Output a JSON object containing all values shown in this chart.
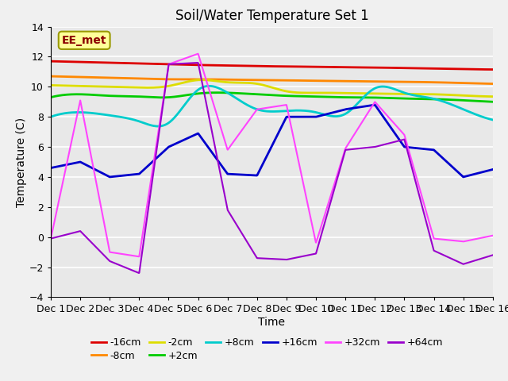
{
  "title": "Soil/Water Temperature Set 1",
  "xlabel": "Time",
  "ylabel": "Temperature (C)",
  "xlim": [
    0,
    15
  ],
  "ylim": [
    -4,
    14
  ],
  "yticks": [
    -4,
    -2,
    0,
    2,
    4,
    6,
    8,
    10,
    12,
    14
  ],
  "xtick_labels": [
    "Dec 1",
    "Dec 2",
    "Dec 3",
    "Dec 4",
    "Dec 5",
    "Dec 6",
    "Dec 7",
    "Dec 8",
    "Dec 9",
    "Dec 10",
    "Dec 11",
    "Dec 12",
    "Dec 13",
    "Dec 14",
    "Dec 15",
    "Dec 16"
  ],
  "annotation_text": "EE_met",
  "annotation_bg": "#ffff99",
  "annotation_border": "#999900",
  "series": [
    {
      "label": "-16cm",
      "color": "#dd0000",
      "lw": 2.0,
      "smooth": true,
      "values": [
        11.7,
        11.65,
        11.6,
        11.55,
        11.5,
        11.45,
        11.42,
        11.38,
        11.35,
        11.33,
        11.3,
        11.28,
        11.25,
        11.22,
        11.18,
        11.15
      ]
    },
    {
      "label": "-8cm",
      "color": "#ff8800",
      "lw": 2.0,
      "smooth": true,
      "values": [
        10.7,
        10.65,
        10.6,
        10.55,
        10.5,
        10.5,
        10.48,
        10.45,
        10.43,
        10.4,
        10.38,
        10.35,
        10.33,
        10.3,
        10.25,
        10.2
      ]
    },
    {
      "label": "-2cm",
      "color": "#dddd00",
      "lw": 2.0,
      "smooth": true,
      "values": [
        10.1,
        10.05,
        10.0,
        9.95,
        10.05,
        10.45,
        10.3,
        10.2,
        9.7,
        9.6,
        9.58,
        9.55,
        9.52,
        9.5,
        9.42,
        9.35
      ]
    },
    {
      "label": "+2cm",
      "color": "#00cc00",
      "lw": 2.0,
      "smooth": true,
      "values": [
        9.3,
        9.5,
        9.4,
        9.35,
        9.3,
        9.55,
        9.6,
        9.5,
        9.4,
        9.35,
        9.3,
        9.28,
        9.22,
        9.18,
        9.1,
        9.0
      ]
    },
    {
      "label": "+8cm",
      "color": "#00cccc",
      "lw": 2.0,
      "smooth": true,
      "values": [
        8.0,
        8.3,
        8.1,
        7.7,
        7.6,
        9.8,
        9.6,
        8.5,
        8.4,
        8.3,
        8.2,
        9.9,
        9.6,
        9.2,
        8.5,
        7.8
      ]
    },
    {
      "label": "+16cm",
      "color": "#0000cc",
      "lw": 2.0,
      "smooth": false,
      "values": [
        4.6,
        5.0,
        4.0,
        4.2,
        6.0,
        6.9,
        4.2,
        4.1,
        8.0,
        8.0,
        8.5,
        8.8,
        6.0,
        5.8,
        4.0,
        4.5
      ]
    },
    {
      "label": "+32cm",
      "color": "#ff44ff",
      "lw": 1.5,
      "smooth": false,
      "values": [
        -0.1,
        9.1,
        -1.0,
        -1.3,
        11.5,
        12.2,
        5.8,
        8.5,
        8.8,
        -0.4,
        5.9,
        9.0,
        6.8,
        -0.1,
        -0.3,
        0.1
      ]
    },
    {
      "label": "+64cm",
      "color": "#9900cc",
      "lw": 1.5,
      "smooth": false,
      "values": [
        -0.1,
        0.4,
        -1.6,
        -2.4,
        11.5,
        11.6,
        1.8,
        -1.4,
        -1.5,
        -1.1,
        5.8,
        6.0,
        6.5,
        -0.9,
        -1.8,
        -1.2
      ]
    }
  ],
  "fig_facecolor": "#f0f0f0",
  "plot_facecolor": "#e8e8e8",
  "grid_color": "#ffffff",
  "title_fontsize": 12,
  "axis_label_fontsize": 10,
  "tick_fontsize": 9,
  "legend_fontsize": 9
}
